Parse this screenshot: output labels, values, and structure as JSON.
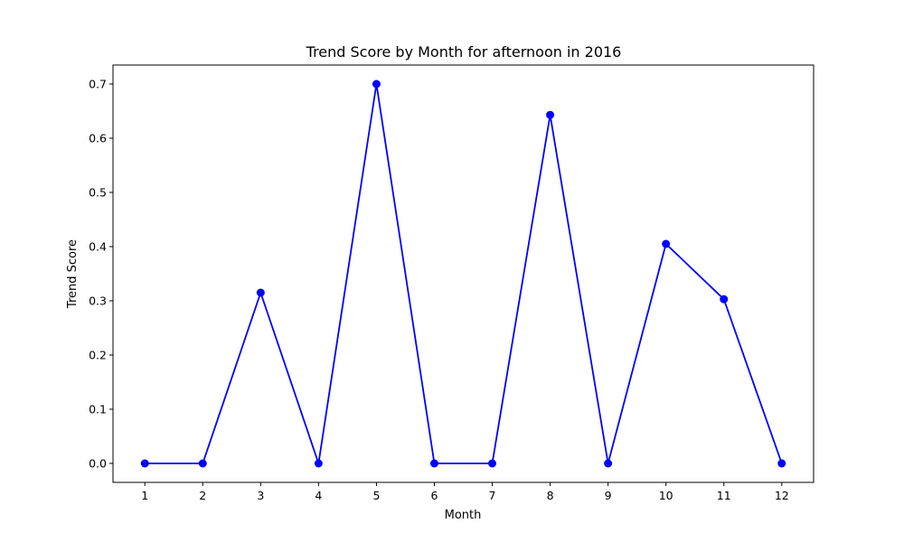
{
  "chart_data": {
    "type": "line",
    "title": "Trend Score by Month for afternoon in 2016",
    "xlabel": "Month",
    "ylabel": "Trend Score",
    "x": [
      1,
      2,
      3,
      4,
      5,
      6,
      7,
      8,
      9,
      10,
      11,
      12
    ],
    "series": [
      {
        "values": [
          0,
          0,
          0.315,
          0,
          0.7,
          0,
          0,
          0.643,
          0,
          0.405,
          0.303,
          0
        ],
        "color": "#0000ff",
        "marker": "circle"
      }
    ],
    "xlim": [
      0.45,
      12.55
    ],
    "ylim": [
      -0.035,
      0.735
    ],
    "xticks": [
      "1",
      "2",
      "3",
      "4",
      "5",
      "6",
      "7",
      "8",
      "9",
      "10",
      "11",
      "12"
    ],
    "yticks": [
      "0.0",
      "0.1",
      "0.2",
      "0.3",
      "0.4",
      "0.5",
      "0.6",
      "0.7"
    ],
    "grid": false,
    "legend": "none"
  }
}
